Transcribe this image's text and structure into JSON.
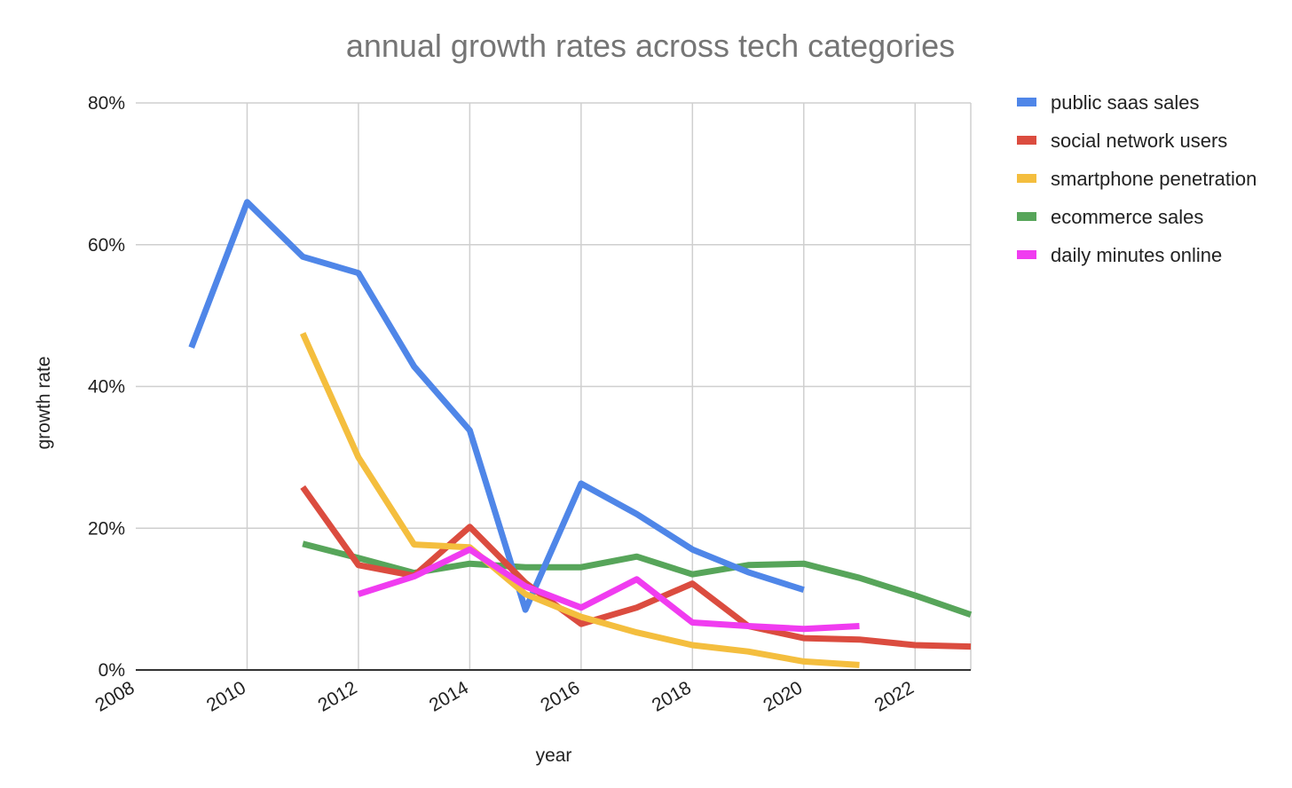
{
  "chart_data": {
    "type": "line",
    "title": "annual growth rates across tech categories",
    "xlabel": "year",
    "ylabel": "growth rate",
    "xlim": [
      2008,
      2023
    ],
    "ylim": [
      0,
      80
    ],
    "x_ticks": [
      2008,
      2010,
      2012,
      2014,
      2016,
      2018,
      2020,
      2022
    ],
    "x_tick_labels": [
      "2008",
      "2010",
      "2012",
      "2014",
      "2016",
      "2018",
      "2020",
      "2022"
    ],
    "y_ticks": [
      0,
      20,
      40,
      60,
      80
    ],
    "y_tick_labels": [
      "0%",
      "20%",
      "40%",
      "60%",
      "80%"
    ],
    "grid": true,
    "legend_position": "right",
    "series": [
      {
        "name": "public saas sales",
        "color": "#4f86e8",
        "points": [
          [
            2009,
            45.5
          ],
          [
            2010,
            66
          ],
          [
            2011,
            58.3
          ],
          [
            2012,
            56
          ],
          [
            2013,
            42.8
          ],
          [
            2014,
            33.8
          ],
          [
            2015,
            8.5
          ],
          [
            2016,
            26.3
          ],
          [
            2017,
            22
          ],
          [
            2018,
            17
          ],
          [
            2019,
            13.8
          ],
          [
            2020,
            11.3
          ]
        ]
      },
      {
        "name": "social network users",
        "color": "#db4c3f",
        "points": [
          [
            2011,
            25.8
          ],
          [
            2012,
            14.8
          ],
          [
            2013,
            13.3
          ],
          [
            2014,
            20.2
          ],
          [
            2015,
            12.3
          ],
          [
            2016,
            6.5
          ],
          [
            2017,
            8.8
          ],
          [
            2018,
            12.2
          ],
          [
            2019,
            6.2
          ],
          [
            2020,
            4.5
          ],
          [
            2021,
            4.3
          ],
          [
            2022,
            3.5
          ],
          [
            2023,
            3.3
          ]
        ]
      },
      {
        "name": "smartphone penetration",
        "color": "#f4be3e",
        "points": [
          [
            2011,
            47.5
          ],
          [
            2012,
            30
          ],
          [
            2013,
            17.7
          ],
          [
            2014,
            17.3
          ],
          [
            2015,
            10.7
          ],
          [
            2016,
            7.5
          ],
          [
            2017,
            5.3
          ],
          [
            2018,
            3.5
          ],
          [
            2019,
            2.6
          ],
          [
            2020,
            1.2
          ],
          [
            2021,
            0.7
          ]
        ]
      },
      {
        "name": "ecommerce sales",
        "color": "#57a55a",
        "points": [
          [
            2011,
            17.8
          ],
          [
            2012,
            15.8
          ],
          [
            2013,
            13.7
          ],
          [
            2014,
            15
          ],
          [
            2015,
            14.5
          ],
          [
            2016,
            14.5
          ],
          [
            2017,
            16
          ],
          [
            2018,
            13.5
          ],
          [
            2019,
            14.8
          ],
          [
            2020,
            15
          ],
          [
            2021,
            13
          ],
          [
            2022,
            10.5
          ],
          [
            2023,
            7.8
          ]
        ]
      },
      {
        "name": "daily minutes online",
        "color": "#f03cf0",
        "points": [
          [
            2012,
            10.7
          ],
          [
            2013,
            13.2
          ],
          [
            2014,
            17
          ],
          [
            2015,
            11.8
          ],
          [
            2016,
            8.8
          ],
          [
            2017,
            12.8
          ],
          [
            2018,
            6.7
          ],
          [
            2019,
            6.2
          ],
          [
            2020,
            5.8
          ],
          [
            2021,
            6.2
          ]
        ]
      }
    ]
  }
}
